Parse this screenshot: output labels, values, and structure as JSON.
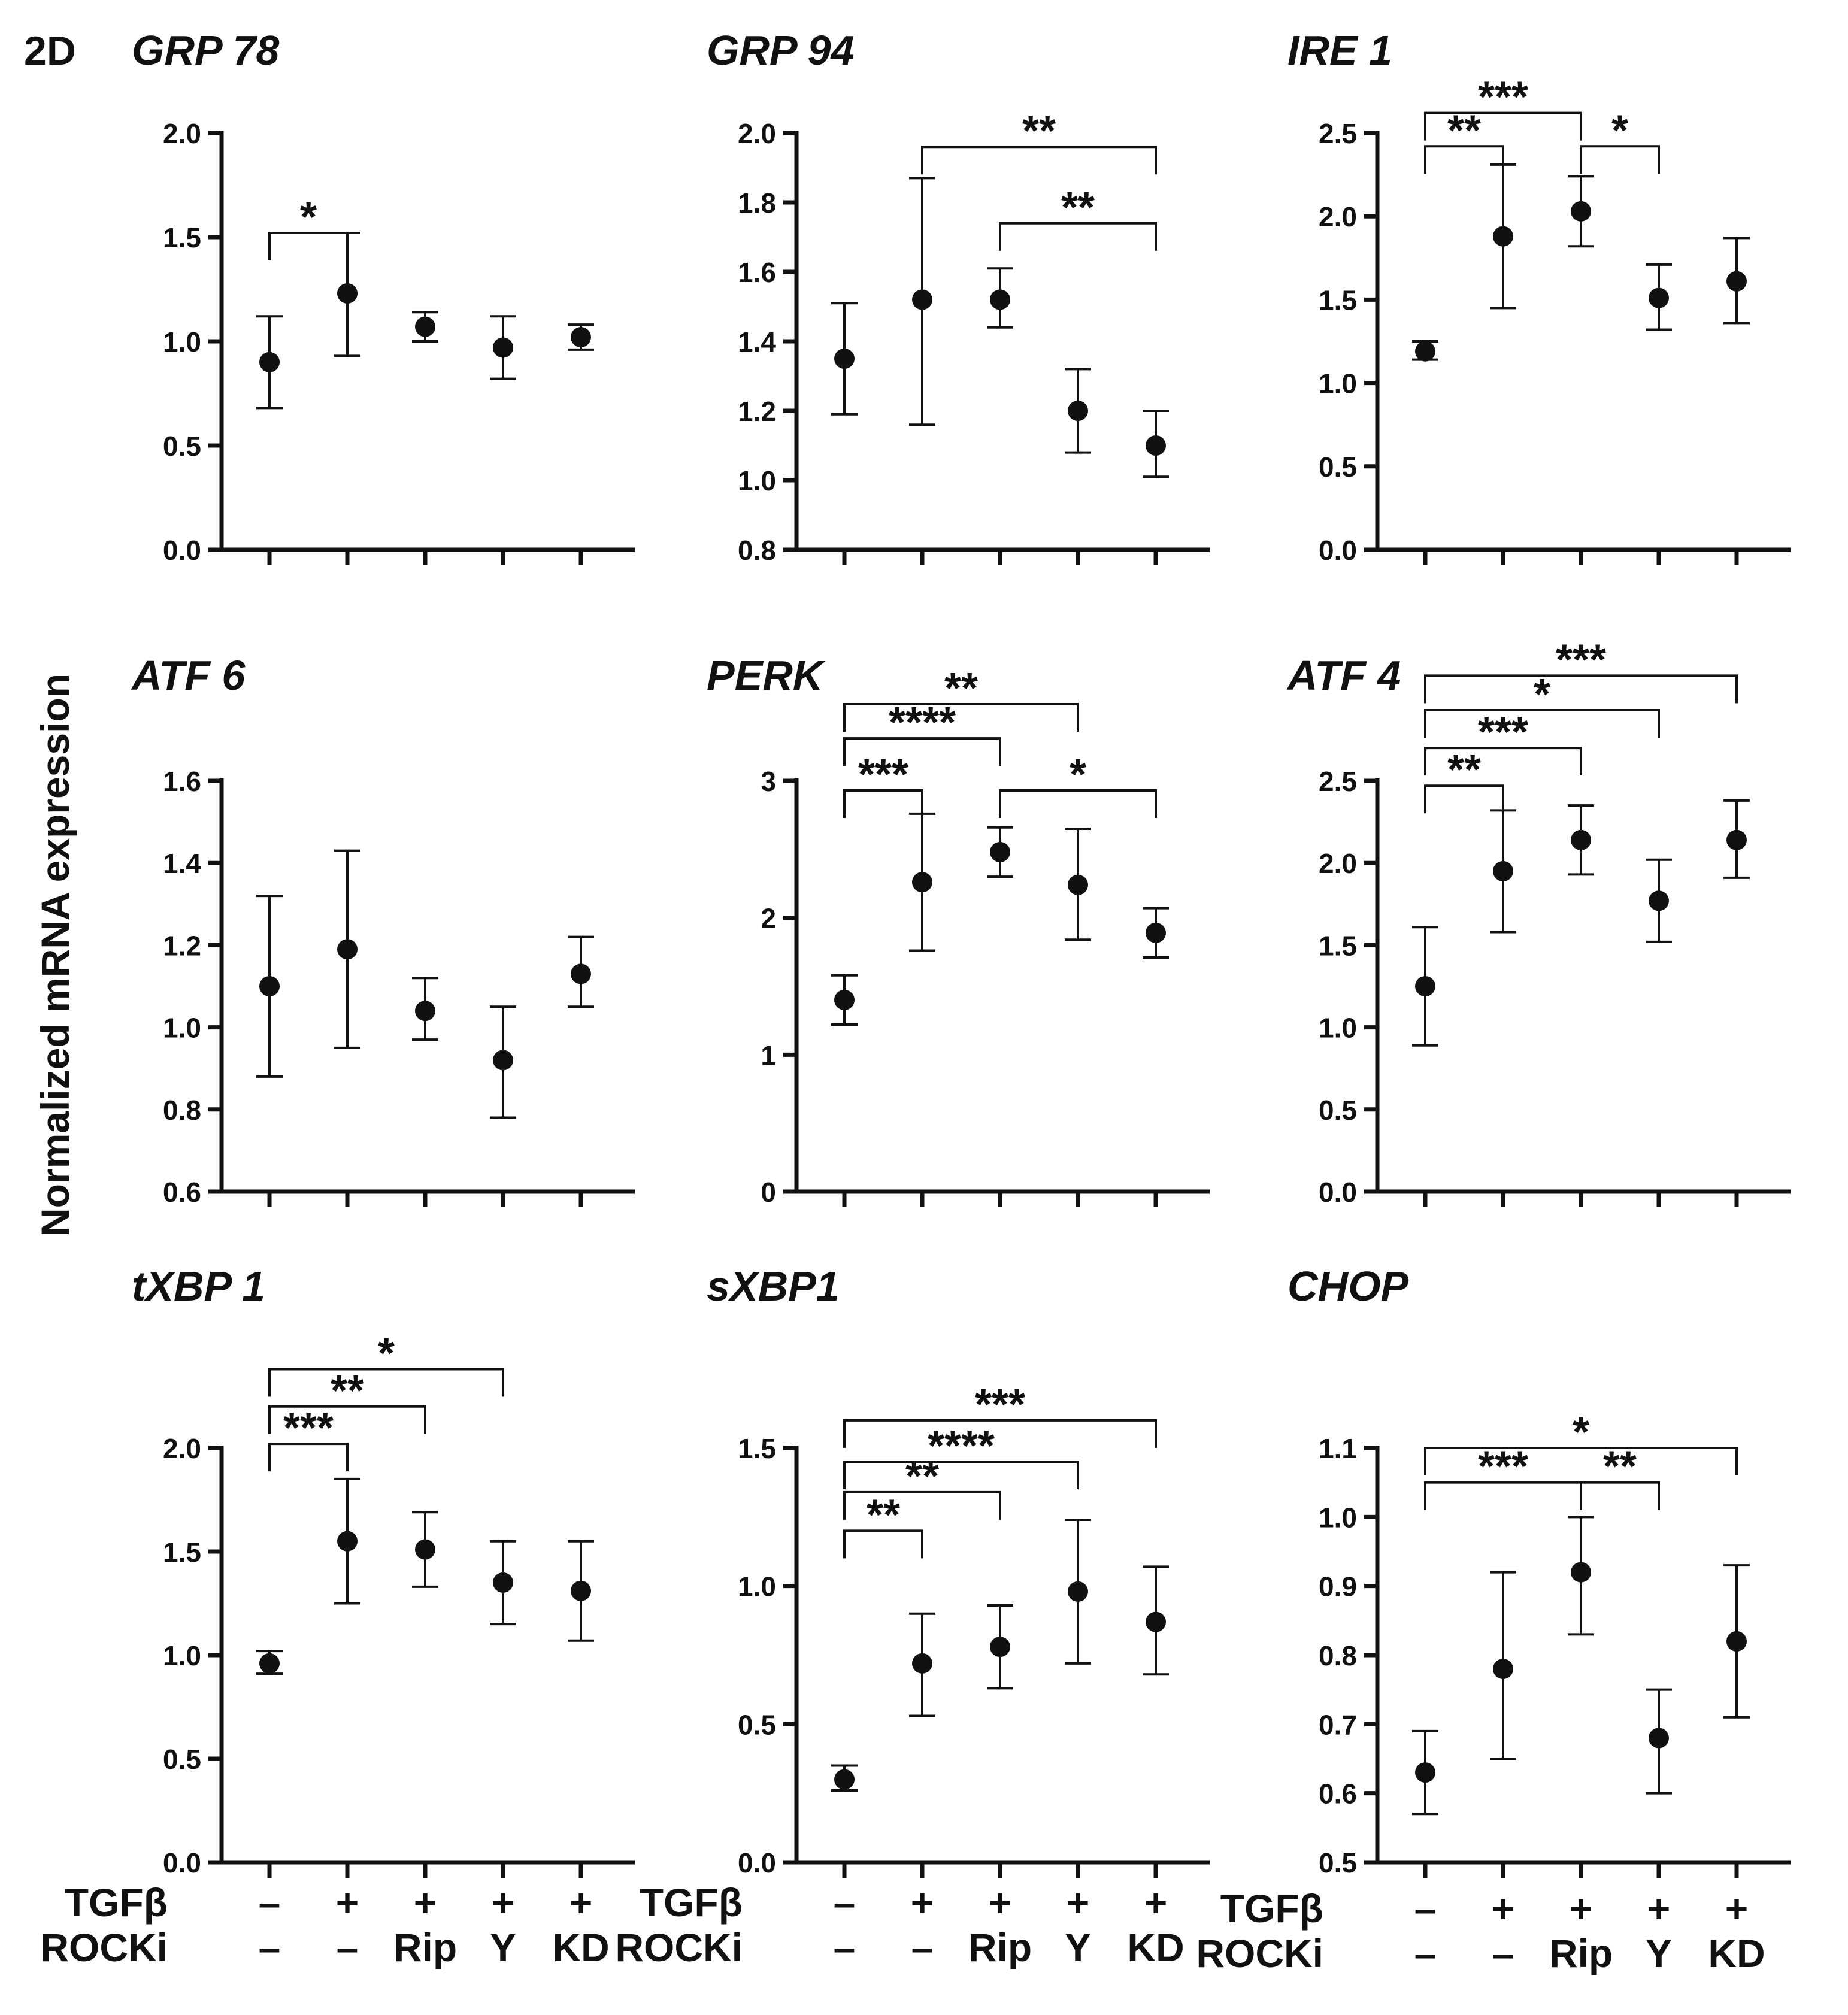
{
  "figure_label": "2D",
  "y_axis_label": "Normalized mRNA expression",
  "row_labels": {
    "tgf": "TGFβ",
    "rocki": "ROCKi"
  },
  "groups": [
    {
      "tgf": "–",
      "rocki": "–"
    },
    {
      "tgf": "+",
      "rocki": "–"
    },
    {
      "tgf": "+",
      "rocki": "Rip"
    },
    {
      "tgf": "+",
      "rocki": "Y"
    },
    {
      "tgf": "+",
      "rocki": "KD"
    }
  ],
  "chart_data": [
    {
      "type": "scatter",
      "title": "GRP 78",
      "ylim": [
        0,
        2
      ],
      "yticks": [
        "0.0",
        "0.5",
        "1.0",
        "1.5",
        "2.0"
      ],
      "points": [
        {
          "mean": 0.9,
          "lo": 0.68,
          "hi": 1.12
        },
        {
          "mean": 1.23,
          "lo": 0.93,
          "hi": 1.52
        },
        {
          "mean": 1.07,
          "lo": 1.0,
          "hi": 1.14
        },
        {
          "mean": 0.97,
          "lo": 0.82,
          "hi": 1.12
        },
        {
          "mean": 1.02,
          "lo": 0.96,
          "hi": 1.08
        }
      ],
      "significance": [
        {
          "from": 0,
          "to": 1,
          "label": "*",
          "y": 1.52
        }
      ]
    },
    {
      "type": "scatter",
      "title": "GRP 94",
      "ylim": [
        0.8,
        2
      ],
      "yticks": [
        "0.8",
        "1.0",
        "1.2",
        "1.4",
        "1.6",
        "1.8",
        "2.0"
      ],
      "points": [
        {
          "mean": 1.35,
          "lo": 1.19,
          "hi": 1.51
        },
        {
          "mean": 1.52,
          "lo": 1.16,
          "hi": 1.87
        },
        {
          "mean": 1.52,
          "lo": 1.44,
          "hi": 1.61
        },
        {
          "mean": 1.2,
          "lo": 1.08,
          "hi": 1.32
        },
        {
          "mean": 1.1,
          "lo": 1.01,
          "hi": 1.2
        }
      ],
      "significance": [
        {
          "from": 1,
          "to": 4,
          "label": "**",
          "y": 1.96
        },
        {
          "from": 2,
          "to": 4,
          "label": "**",
          "y": 1.74
        }
      ]
    },
    {
      "type": "scatter",
      "title": "IRE 1",
      "ylim": [
        0,
        2.5
      ],
      "yticks": [
        "0.0",
        "0.5",
        "1.0",
        "1.5",
        "2.0",
        "2.5"
      ],
      "points": [
        {
          "mean": 1.19,
          "lo": 1.14,
          "hi": 1.25
        },
        {
          "mean": 1.88,
          "lo": 1.45,
          "hi": 2.31
        },
        {
          "mean": 2.03,
          "lo": 1.82,
          "hi": 2.24
        },
        {
          "mean": 1.51,
          "lo": 1.32,
          "hi": 1.71
        },
        {
          "mean": 1.61,
          "lo": 1.36,
          "hi": 1.87
        }
      ],
      "significance": [
        {
          "from": 0,
          "to": 1,
          "label": "**",
          "y": 2.42
        },
        {
          "from": 0,
          "to": 2,
          "label": "***",
          "y": 2.62
        },
        {
          "from": 2,
          "to": 3,
          "label": "*",
          "y": 2.42
        }
      ]
    },
    {
      "type": "scatter",
      "title": "ATF 6",
      "ylim": [
        0.6,
        1.6
      ],
      "yticks": [
        "0.6",
        "0.8",
        "1.0",
        "1.2",
        "1.4",
        "1.6"
      ],
      "points": [
        {
          "mean": 1.1,
          "lo": 0.88,
          "hi": 1.32
        },
        {
          "mean": 1.19,
          "lo": 0.95,
          "hi": 1.43
        },
        {
          "mean": 1.04,
          "lo": 0.97,
          "hi": 1.12
        },
        {
          "mean": 0.92,
          "lo": 0.78,
          "hi": 1.05
        },
        {
          "mean": 1.13,
          "lo": 1.05,
          "hi": 1.22
        }
      ],
      "significance": []
    },
    {
      "type": "scatter",
      "title": "PERK",
      "ylim": [
        0,
        3
      ],
      "yticks": [
        "0",
        "1",
        "2",
        "3"
      ],
      "points": [
        {
          "mean": 1.4,
          "lo": 1.22,
          "hi": 1.58
        },
        {
          "mean": 2.26,
          "lo": 1.76,
          "hi": 2.76
        },
        {
          "mean": 2.48,
          "lo": 2.3,
          "hi": 2.66
        },
        {
          "mean": 2.24,
          "lo": 1.84,
          "hi": 2.65
        },
        {
          "mean": 1.89,
          "lo": 1.71,
          "hi": 2.07
        }
      ],
      "significance": [
        {
          "from": 0,
          "to": 1,
          "label": "***",
          "y": 2.93
        },
        {
          "from": 0,
          "to": 2,
          "label": "****",
          "y": 3.31
        },
        {
          "from": 0,
          "to": 3,
          "label": "**",
          "y": 3.56
        },
        {
          "from": 2,
          "to": 4,
          "label": "*",
          "y": 2.93
        }
      ]
    },
    {
      "type": "scatter",
      "title": "ATF 4",
      "ylim": [
        0,
        2.5
      ],
      "yticks": [
        "0.0",
        "0.5",
        "1.0",
        "1.5",
        "2.0",
        "2.5"
      ],
      "points": [
        {
          "mean": 1.25,
          "lo": 0.89,
          "hi": 1.61
        },
        {
          "mean": 1.95,
          "lo": 1.58,
          "hi": 2.32
        },
        {
          "mean": 2.14,
          "lo": 1.93,
          "hi": 2.35
        },
        {
          "mean": 1.77,
          "lo": 1.52,
          "hi": 2.02
        },
        {
          "mean": 2.14,
          "lo": 1.91,
          "hi": 2.38
        }
      ],
      "significance": [
        {
          "from": 0,
          "to": 1,
          "label": "**",
          "y": 2.47
        },
        {
          "from": 0,
          "to": 2,
          "label": "***",
          "y": 2.7
        },
        {
          "from": 0,
          "to": 3,
          "label": "*",
          "y": 2.93
        },
        {
          "from": 0,
          "to": 4,
          "label": "***",
          "y": 3.14
        }
      ]
    },
    {
      "type": "scatter",
      "title": "tXBP 1",
      "ylim": [
        0,
        2
      ],
      "yticks": [
        "0.0",
        "0.5",
        "1.0",
        "1.5",
        "2.0"
      ],
      "points": [
        {
          "mean": 0.96,
          "lo": 0.91,
          "hi": 1.02
        },
        {
          "mean": 1.55,
          "lo": 1.25,
          "hi": 1.85
        },
        {
          "mean": 1.51,
          "lo": 1.33,
          "hi": 1.69
        },
        {
          "mean": 1.35,
          "lo": 1.15,
          "hi": 1.55
        },
        {
          "mean": 1.31,
          "lo": 1.07,
          "hi": 1.55
        }
      ],
      "significance": [
        {
          "from": 0,
          "to": 1,
          "label": "***",
          "y": 2.02
        },
        {
          "from": 0,
          "to": 2,
          "label": "**",
          "y": 2.2
        },
        {
          "from": 0,
          "to": 3,
          "label": "*",
          "y": 2.38
        }
      ]
    },
    {
      "type": "scatter",
      "title": "sXBP1",
      "ylim": [
        0,
        1.5
      ],
      "yticks": [
        "0.0",
        "0.5",
        "1.0",
        "1.5"
      ],
      "points": [
        {
          "mean": 0.3,
          "lo": 0.26,
          "hi": 0.35
        },
        {
          "mean": 0.72,
          "lo": 0.53,
          "hi": 0.9
        },
        {
          "mean": 0.78,
          "lo": 0.63,
          "hi": 0.93
        },
        {
          "mean": 0.98,
          "lo": 0.72,
          "hi": 1.24
        },
        {
          "mean": 0.87,
          "lo": 0.68,
          "hi": 1.07
        }
      ],
      "significance": [
        {
          "from": 0,
          "to": 1,
          "label": "**",
          "y": 1.2
        },
        {
          "from": 0,
          "to": 2,
          "label": "**",
          "y": 1.34
        },
        {
          "from": 0,
          "to": 3,
          "label": "****",
          "y": 1.45
        },
        {
          "from": 0,
          "to": 4,
          "label": "***",
          "y": 1.6
        }
      ]
    },
    {
      "type": "scatter",
      "title": "CHOP",
      "ylim": [
        0.5,
        1.1
      ],
      "yticks": [
        "0.5",
        "0.6",
        "0.7",
        "0.8",
        "0.9",
        "1.0",
        "1.1"
      ],
      "points": [
        {
          "mean": 0.63,
          "lo": 0.57,
          "hi": 0.69
        },
        {
          "mean": 0.78,
          "lo": 0.65,
          "hi": 0.92
        },
        {
          "mean": 0.92,
          "lo": 0.83,
          "hi": 1.0
        },
        {
          "mean": 0.68,
          "lo": 0.6,
          "hi": 0.75
        },
        {
          "mean": 0.82,
          "lo": 0.71,
          "hi": 0.93
        }
      ],
      "significance": [
        {
          "from": 0,
          "to": 2,
          "label": "***",
          "y": 1.05
        },
        {
          "from": 2,
          "to": 3,
          "label": "**",
          "y": 1.05
        },
        {
          "from": 0,
          "to": 4,
          "label": "*",
          "y": 1.1
        }
      ]
    }
  ]
}
